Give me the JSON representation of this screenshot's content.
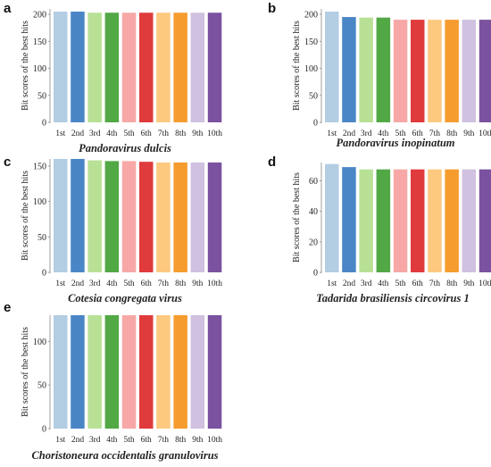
{
  "figure": {
    "colors": [
      "#b3cde3",
      "#4a86c6",
      "#b8e196",
      "#52a845",
      "#f7a8a6",
      "#e03b3c",
      "#fdc97f",
      "#f69c2f",
      "#cfc1df",
      "#7a52a0"
    ]
  },
  "chart_data": [
    {
      "panel": "a",
      "type": "bar",
      "title": "Pandoravirus dulcis",
      "ylabel": "Bit scores of the best hits",
      "categories": [
        "1st",
        "2nd",
        "3rd",
        "4th",
        "5th",
        "6th",
        "7th",
        "8th",
        "9th",
        "10th"
      ],
      "values": [
        205,
        205,
        203,
        203,
        203,
        203,
        203,
        203,
        203,
        203
      ],
      "ylim": [
        0,
        210
      ],
      "yticks": [
        0,
        50,
        100,
        150,
        200
      ],
      "grid": false
    },
    {
      "panel": "b",
      "type": "bar",
      "title": "Pandoravirus inopinatum",
      "ylabel": "Bit scores of the best hits",
      "categories": [
        "1st",
        "2nd",
        "3rd",
        "4th",
        "5th",
        "6th",
        "7th",
        "8th",
        "9th",
        "10th"
      ],
      "values": [
        205,
        195,
        194,
        194,
        190,
        190,
        190,
        190,
        190,
        190
      ],
      "ylim": [
        0,
        210
      ],
      "yticks": [
        0,
        50,
        100,
        150,
        200
      ],
      "grid": false
    },
    {
      "panel": "c",
      "type": "bar",
      "title": "Cotesia congregata virus",
      "ylabel": "Bit scores of the best hits",
      "categories": [
        "1st",
        "2nd",
        "3rd",
        "4th",
        "5th",
        "6th",
        "7th",
        "8th",
        "9th",
        "10th"
      ],
      "values": [
        160,
        160,
        158,
        157,
        157,
        156,
        155,
        155,
        155,
        155
      ],
      "ylim": [
        0,
        160
      ],
      "yticks": [
        0,
        50,
        100,
        150
      ],
      "grid": false
    },
    {
      "panel": "d",
      "type": "bar",
      "title": "Tadarida brasiliensis circovirus 1",
      "ylabel": "Bit scores of the best hits",
      "categories": [
        "1st",
        "2nd",
        "3rd",
        "4th",
        "5th",
        "6th",
        "7th",
        "8th",
        "9th",
        "10th"
      ],
      "values": [
        71,
        69,
        67.5,
        67.5,
        67.5,
        67.5,
        67.5,
        67.5,
        67.5,
        67.5
      ],
      "ylim": [
        0,
        72
      ],
      "yticks": [
        0,
        20,
        40,
        60
      ],
      "grid": false
    },
    {
      "panel": "e",
      "type": "bar",
      "title": "Choristoneura occidentalis granulovirus",
      "ylabel": "Bit scores of the best hits",
      "categories": [
        "1st",
        "2nd",
        "3rd",
        "4th",
        "5th",
        "6th",
        "7th",
        "8th",
        "9th",
        "10th"
      ],
      "values": [
        130,
        130,
        130,
        130,
        130,
        130,
        130,
        130,
        130,
        130
      ],
      "ylim": [
        0,
        130
      ],
      "yticks": [
        0,
        50,
        100
      ],
      "grid": false
    }
  ]
}
